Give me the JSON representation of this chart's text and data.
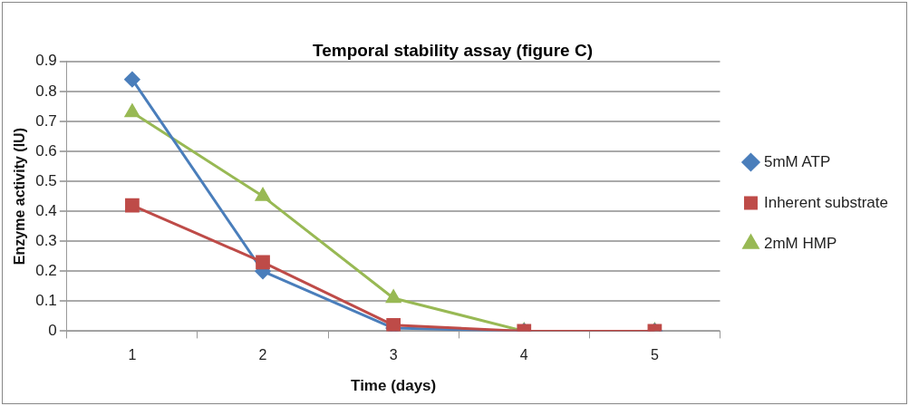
{
  "chart_data": {
    "type": "line",
    "title": "Temporal stability assay (figure C)",
    "xlabel": "Time (days)",
    "ylabel": "Enzyme activity (IU)",
    "categories": [
      "1",
      "2",
      "3",
      "4",
      "5"
    ],
    "series": [
      {
        "name": "5mM ATP",
        "color": "#4a7ebb",
        "marker": "diamond",
        "values": [
          0.84,
          0.2,
          0.01,
          0,
          0
        ]
      },
      {
        "name": "Inherent substrate",
        "color": "#be4b48",
        "marker": "square",
        "values": [
          0.42,
          0.23,
          0.02,
          0,
          0
        ]
      },
      {
        "name": "2mM HMP",
        "color": "#98b954",
        "marker": "triangle",
        "values": [
          0.73,
          0.45,
          0.11,
          0,
          0
        ]
      }
    ],
    "ylim": [
      0,
      0.9
    ],
    "yticks": [
      0,
      0.1,
      0.2,
      0.3,
      0.4,
      0.5,
      0.6,
      0.7,
      0.8,
      0.9
    ],
    "grid": "y",
    "legend": "right"
  }
}
